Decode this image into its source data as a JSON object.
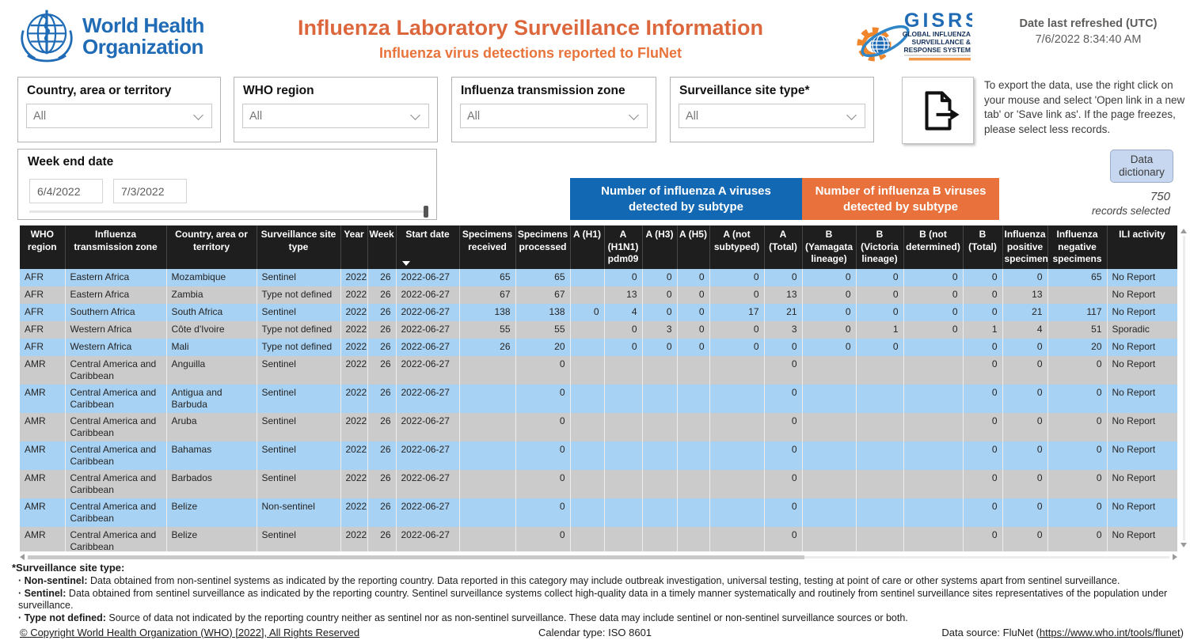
{
  "colors": {
    "who_blue": "#1F6BB5",
    "title_orange": "#DD673C",
    "subtitle_orange": "#E8743C",
    "banner_blue": "#1268B3",
    "banner_orange": "#E8713C",
    "row_blue": "#A8D2F4",
    "row_gray": "#CBCBCB",
    "table_header_dark": "#1F1E1E",
    "data_dictionary_bg": "#C7D7EF"
  },
  "header": {
    "who_logo_line1": "World Health",
    "who_logo_line2": "Organization",
    "title": "Influenza Laboratory Surveillance Information",
    "subtitle": "Influenza virus detections reported to FluNet",
    "gisrs": {
      "acronym": "GISRS",
      "line1": "GLOBAL INFLUENZA",
      "line2": "SURVEILLANCE &",
      "line3": "RESPONSE SYSTEM"
    },
    "refreshed_label": "Date last refreshed (UTC)",
    "refreshed_value": "7/6/2022 8:34:40 AM"
  },
  "filters": [
    {
      "label": "Country, area or territory",
      "value": "All"
    },
    {
      "label": "WHO region",
      "value": "All"
    },
    {
      "label": "Influenza transmission zone",
      "value": "All"
    },
    {
      "label": "Surveillance site type*",
      "value": "All"
    }
  ],
  "export_note": "To export the data, use the right click on your mouse and select 'Open link in a new tab' or 'Save link as'. If the page freezes, please select less records.",
  "week_filter": {
    "label": "Week end date",
    "start": "6/4/2022",
    "end": "7/3/2022"
  },
  "data_dictionary_label": "Data dictionary",
  "records_selected": {
    "count": "750",
    "label": "records selected"
  },
  "banners": {
    "influenza_a": "Number of influenza A viruses detected by subtype",
    "influenza_b": "Number of influenza B viruses detected by subtype"
  },
  "table": {
    "columns": [
      "WHO region",
      "Influenza transmission zone",
      "Country, area or territory",
      "Surveillance site type",
      "Year",
      "Week",
      "Start date",
      "Specimens received",
      "Specimens processed",
      "A (H1)",
      "A (H1N1) pdm09",
      "A (H3)",
      "A (H5)",
      "A (not subtyped)",
      "A (Total)",
      "B (Yamagata lineage)",
      "B (Victoria lineage)",
      "B (not determined)",
      "B (Total)",
      "Influenza positive specimens",
      "Influenza negative specimens",
      "ILI activity"
    ],
    "sorted_column": "Start date",
    "rows": [
      [
        "AFR",
        "Eastern Africa",
        "Mozambique",
        "Sentinel",
        "2022",
        "26",
        "2022-06-27",
        "65",
        "65",
        "",
        "0",
        "0",
        "0",
        "0",
        "0",
        "0",
        "0",
        "0",
        "0",
        "0",
        "65",
        "No Report"
      ],
      [
        "AFR",
        "Eastern Africa",
        "Zambia",
        "Type not defined",
        "2022",
        "26",
        "2022-06-27",
        "67",
        "67",
        "",
        "13",
        "0",
        "0",
        "0",
        "13",
        "0",
        "0",
        "0",
        "0",
        "13",
        "",
        "No Report"
      ],
      [
        "AFR",
        "Southern Africa",
        "South Africa",
        "Sentinel",
        "2022",
        "26",
        "2022-06-27",
        "138",
        "138",
        "0",
        "4",
        "0",
        "0",
        "17",
        "21",
        "0",
        "0",
        "0",
        "0",
        "21",
        "117",
        "No Report"
      ],
      [
        "AFR",
        "Western Africa",
        "Côte d'Ivoire",
        "Type not defined",
        "2022",
        "26",
        "2022-06-27",
        "55",
        "55",
        "",
        "0",
        "3",
        "0",
        "0",
        "3",
        "0",
        "1",
        "0",
        "1",
        "4",
        "51",
        "Sporadic"
      ],
      [
        "AFR",
        "Western Africa",
        "Mali",
        "Type not defined",
        "2022",
        "26",
        "2022-06-27",
        "26",
        "20",
        "",
        "0",
        "0",
        "0",
        "0",
        "0",
        "0",
        "0",
        "",
        "0",
        "0",
        "20",
        "No Report"
      ],
      [
        "AMR",
        "Central America and Caribbean",
        "Anguilla",
        "Sentinel",
        "2022",
        "26",
        "2022-06-27",
        "",
        "0",
        "",
        "",
        "",
        "",
        "",
        "0",
        "",
        "",
        "",
        "0",
        "0",
        "0",
        "No Report"
      ],
      [
        "AMR",
        "Central America and Caribbean",
        "Antigua and Barbuda",
        "Sentinel",
        "2022",
        "26",
        "2022-06-27",
        "",
        "0",
        "",
        "",
        "",
        "",
        "",
        "0",
        "",
        "",
        "",
        "0",
        "0",
        "0",
        "No Report"
      ],
      [
        "AMR",
        "Central America and Caribbean",
        "Aruba",
        "Sentinel",
        "2022",
        "26",
        "2022-06-27",
        "",
        "0",
        "",
        "",
        "",
        "",
        "",
        "0",
        "",
        "",
        "",
        "0",
        "0",
        "0",
        "No Report"
      ],
      [
        "AMR",
        "Central America and Caribbean",
        "Bahamas",
        "Sentinel",
        "2022",
        "26",
        "2022-06-27",
        "",
        "0",
        "",
        "",
        "",
        "",
        "",
        "0",
        "",
        "",
        "",
        "0",
        "0",
        "0",
        "No Report"
      ],
      [
        "AMR",
        "Central America and Caribbean",
        "Barbados",
        "Sentinel",
        "2022",
        "26",
        "2022-06-27",
        "",
        "0",
        "",
        "",
        "",
        "",
        "",
        "0",
        "",
        "",
        "",
        "0",
        "0",
        "0",
        "No Report"
      ],
      [
        "AMR",
        "Central America and Caribbean",
        "Belize",
        "Non-sentinel",
        "2022",
        "26",
        "2022-06-27",
        "",
        "0",
        "",
        "",
        "",
        "",
        "",
        "0",
        "",
        "",
        "",
        "0",
        "0",
        "0",
        "No Report"
      ],
      [
        "AMR",
        "Central America and Caribbean",
        "Belize",
        "Sentinel",
        "2022",
        "26",
        "2022-06-27",
        "",
        "0",
        "",
        "",
        "",
        "",
        "",
        "0",
        "",
        "",
        "",
        "0",
        "0",
        "0",
        "No Report"
      ]
    ]
  },
  "footnotes": {
    "title": "*Surveillance site type:",
    "items": [
      {
        "term": "Non-sentinel:",
        "text": " Data obtained from non-sentinel systems as indicated by the reporting country. Data reported in this category may include outbreak investigation, universal testing, testing at point of care or other systems apart from sentinel surveillance."
      },
      {
        "term": "Sentinel:",
        "text": " Data obtained from sentinel surveillance as indicated by the reporting country. Sentinel surveillance systems collect high-quality data in a timely manner systematically and routinely from sentinel surveillance sites representatives of the population under surveillance."
      },
      {
        "term": "Type not defined:",
        "text": " Source of data not indicated by the reporting country neither as sentinel nor as non-sentinel surveillance. These data may include sentinel or non-sentinel surveillance sources or both."
      }
    ]
  },
  "bottom_bar": {
    "copyright": "© Copyright World Health Organization (WHO) [2022], All Rights Reserved",
    "calendar": "Calendar type: ISO 8601",
    "datasource_prefix": "Data source: FluNet (",
    "datasource_link": "https://www.who.int/tools/flunet",
    "datasource_suffix": ")"
  }
}
